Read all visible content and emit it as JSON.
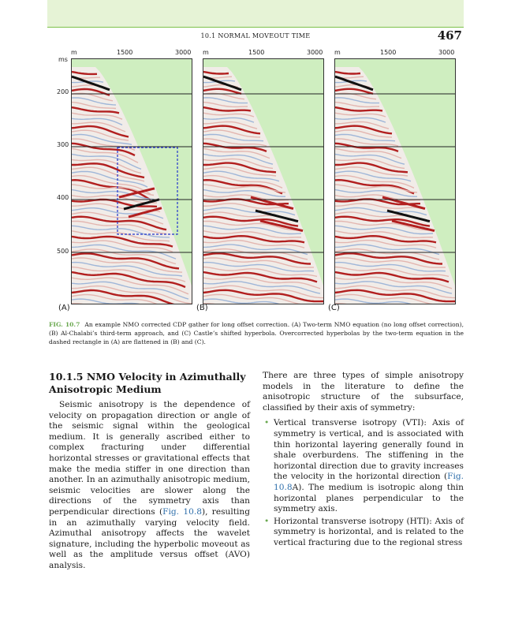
{
  "header": {
    "running_head": "10.1 NORMAL MOVEOUT TIME",
    "page_number": "467"
  },
  "figure": {
    "x_unit": "m",
    "y_unit": "ms",
    "x_ticks": [
      "1500",
      "3000"
    ],
    "y_ticks": [
      "200",
      "300",
      "400",
      "500"
    ],
    "panels": [
      {
        "label": "(A)"
      },
      {
        "label": "(B)"
      },
      {
        "label": "(C)"
      }
    ],
    "colors": {
      "background": "#cfeec0",
      "trace_red": "#b21f1f",
      "trace_black": "#111111",
      "trace_blue": "#9fb6d8",
      "dashed_box": "#2233cc"
    }
  },
  "caption": {
    "label": "FIG. 10.7",
    "text": "An example NMO corrected CDP gather for long offset correction. (A) Two-term NMO equation (no long offset correction), (B) Al-Chalabi’s third-term approach, and (C) Castle’s shifted hyperbola. Overcorrected hyperbolas by the two-term equation in the dashed rectangle in (A) are flattened in (B) and (C)."
  },
  "left_column": {
    "heading": "10.1.5 NMO Velocity in Azimuthally Anisotropic Medium",
    "para_a": "Seismic anisotropy is the dependence of velocity on propagation direction or angle of the seismic signal within the geological medium. It is generally ascribed either to complex fracturing under differential horizontal stresses or gravitational effects that make the media stiffer in one direction than another. In an azimuthally anisotropic medium, seismic velocities are slower along the directions of the symmetry axis than perpendicular directions (",
    "para_link": "Fig. 10.8",
    "para_b": "), resulting in an azimuthally varying velocity field. Azimuthal anisotropy affects the wavelet signature, including the hyperbolic moveout as well as the amplitude versus offset (AVO) analysis."
  },
  "right_column": {
    "intro": "There are three types of simple anisotropy models in the literature to define the anisotropic structure of the subsurface, classified by their axis of symmetry:",
    "bullet1_a": "Vertical transverse isotropy (VTI): Axis of symmetry is vertical, and is associated with thin horizontal layering generally found in shale overburdens. The stiffening in the horizontal direction due to gravity increases the velocity in the horizontal direction (",
    "bullet1_link": "Fig. 10.8",
    "bullet1_b": "A). The medium is isotropic along thin horizontal planes perpendicular to the symmetry axis.",
    "bullet2": "Horizontal transverse isotropy (HTI): Axis of symmetry is horizontal, and is related to the vertical fracturing due to the regional stress"
  }
}
